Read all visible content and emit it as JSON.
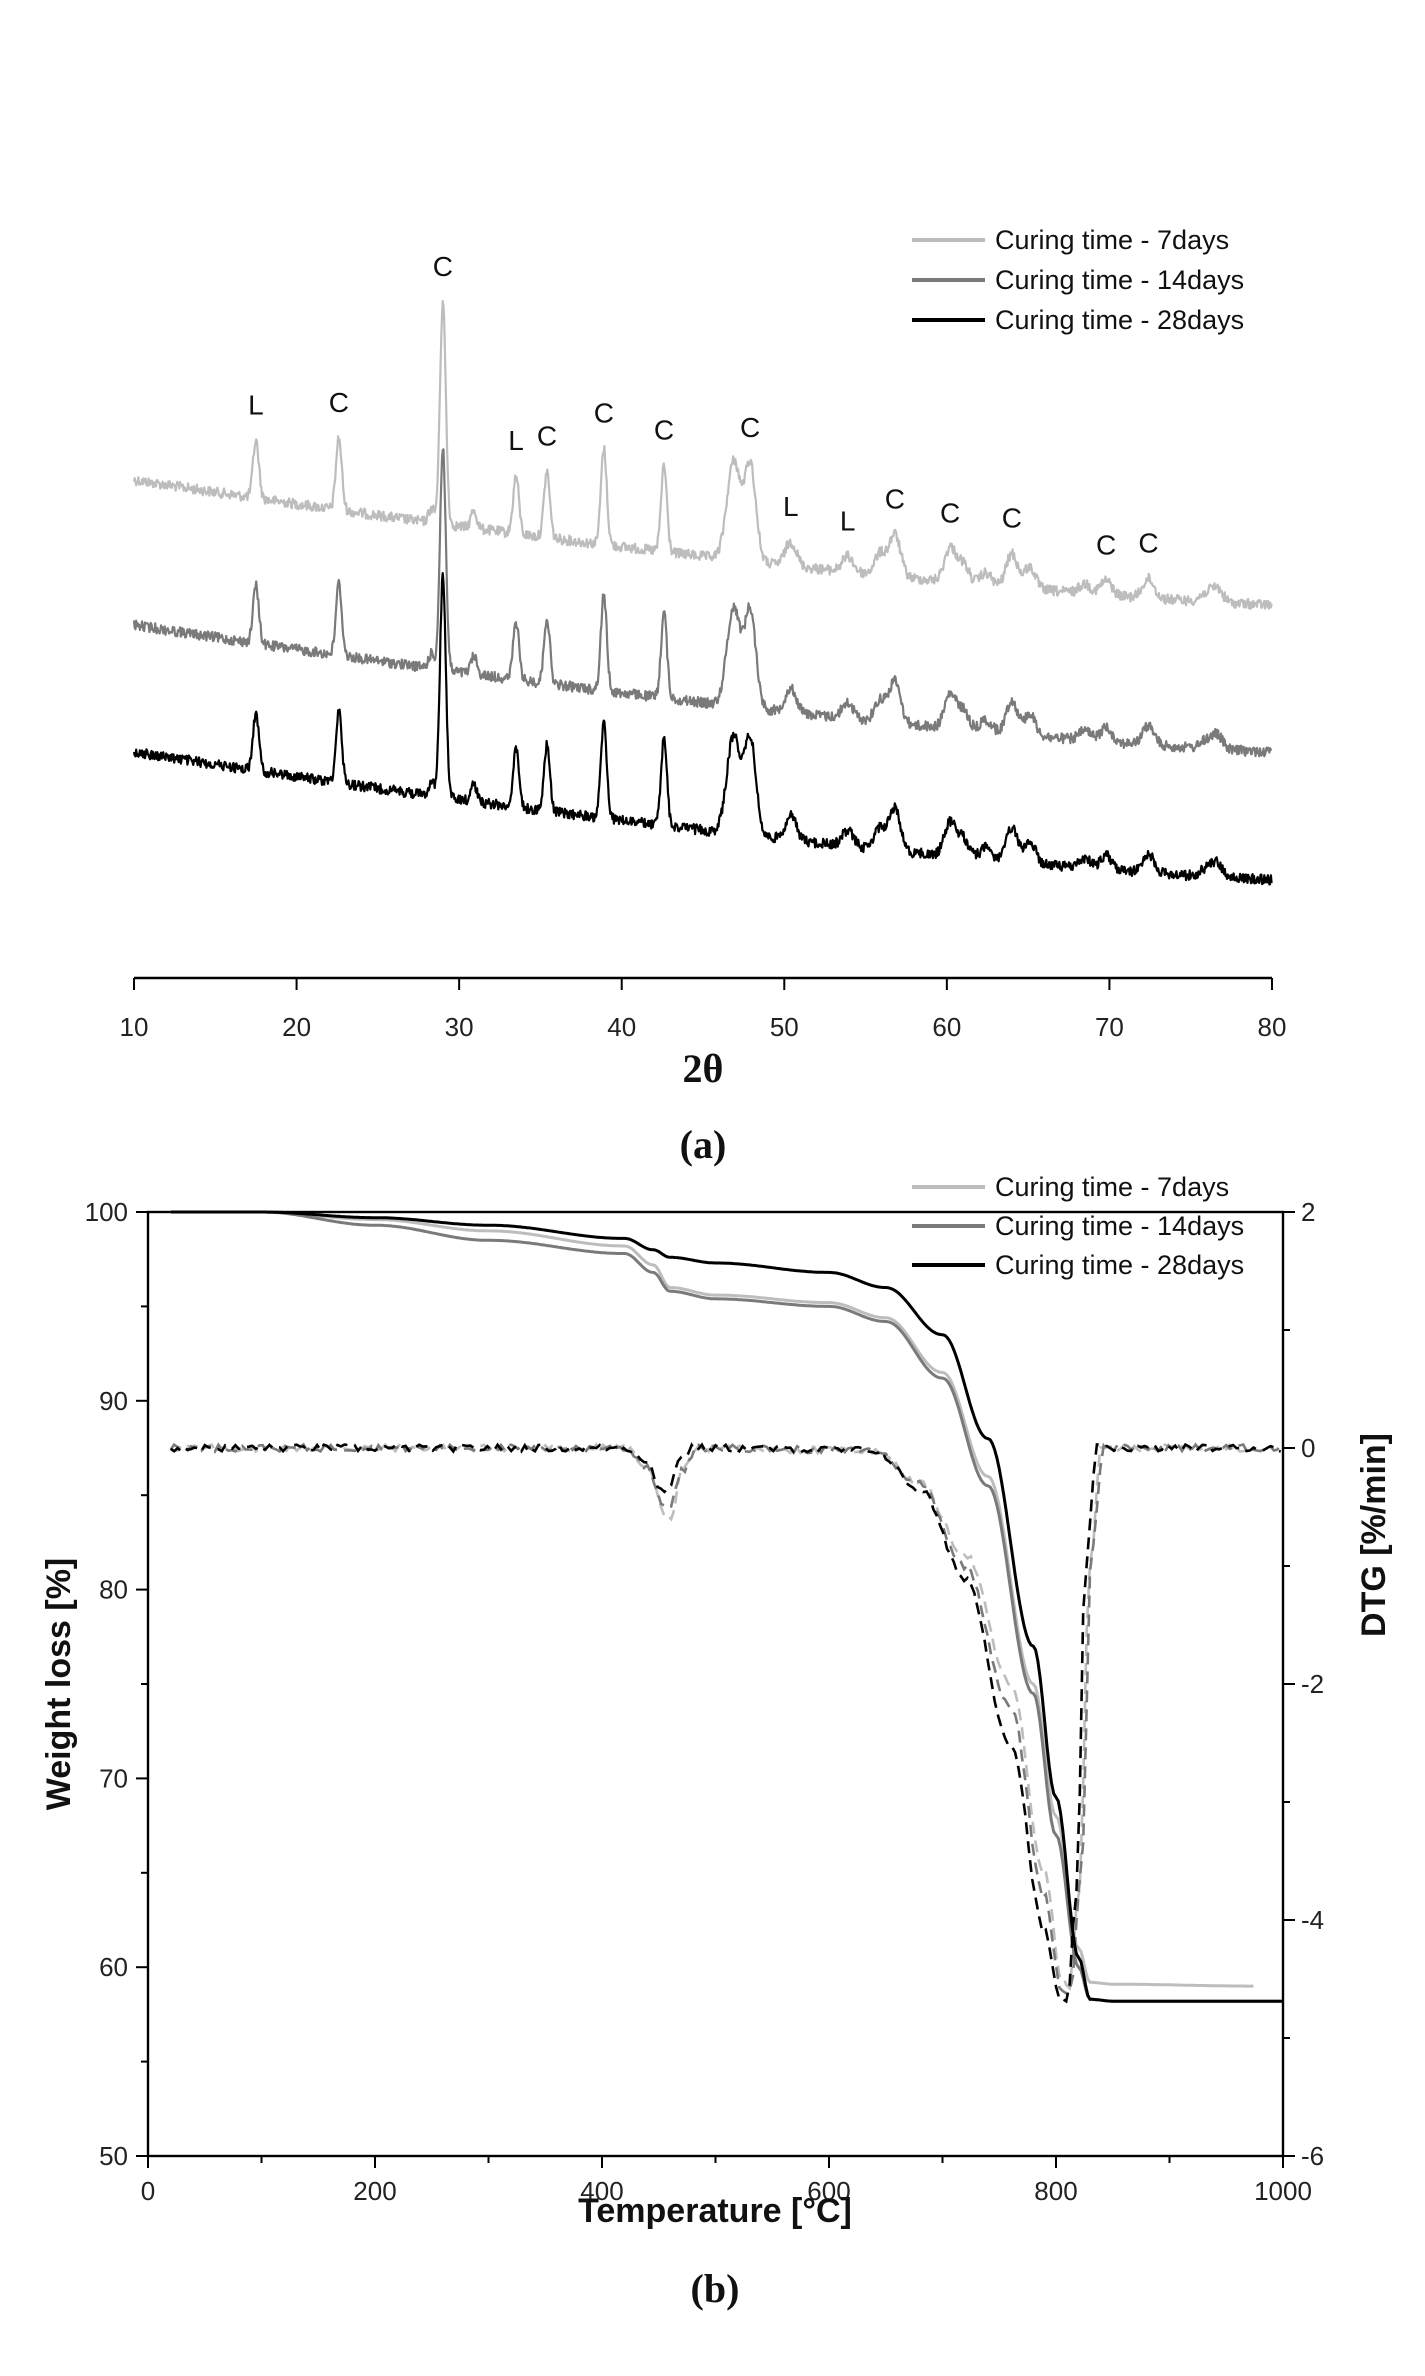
{
  "chart_data": [
    {
      "type": "line",
      "panel_label": "(a)",
      "xlabel": "2θ",
      "ylabel": "",
      "xlim": [
        10,
        80
      ],
      "x_ticks": [
        10,
        20,
        30,
        40,
        50,
        60,
        70,
        80
      ],
      "legend_position": "top-right",
      "series": [
        {
          "name": "Curing time - 7days",
          "color": "#bdbdbd"
        },
        {
          "name": "Curing time - 14days",
          "color": "#7a7a7a"
        },
        {
          "name": "Curing time - 28days",
          "color": "#000000"
        }
      ],
      "peaks": [
        {
          "x": 17.5,
          "height": 0.48,
          "label": "L"
        },
        {
          "x": 22.6,
          "height": 0.6,
          "label": "C"
        },
        {
          "x": 28.3,
          "height": 0.12,
          "label": ""
        },
        {
          "x": 29.0,
          "height": 1.85,
          "label": "C"
        },
        {
          "x": 30.9,
          "height": 0.15,
          "label": ""
        },
        {
          "x": 33.5,
          "height": 0.48,
          "label": "L"
        },
        {
          "x": 35.4,
          "height": 0.55,
          "label": "C"
        },
        {
          "x": 38.9,
          "height": 0.8,
          "label": "C"
        },
        {
          "x": 42.6,
          "height": 0.72,
          "label": "C"
        },
        {
          "x": 46.6,
          "height": 0.32,
          "label": ""
        },
        {
          "x": 47.0,
          "height": 0.62,
          "label": ""
        },
        {
          "x": 47.9,
          "height": 0.82,
          "label": "C"
        },
        {
          "x": 50.4,
          "height": 0.2,
          "label": "L"
        },
        {
          "x": 53.9,
          "height": 0.13,
          "label": "L"
        },
        {
          "x": 55.9,
          "height": 0.18,
          "label": ""
        },
        {
          "x": 56.8,
          "height": 0.35,
          "label": "C"
        },
        {
          "x": 60.2,
          "height": 0.28,
          "label": "C"
        },
        {
          "x": 61.0,
          "height": 0.16,
          "label": ""
        },
        {
          "x": 62.4,
          "height": 0.1,
          "label": ""
        },
        {
          "x": 64.0,
          "height": 0.28,
          "label": "C"
        },
        {
          "x": 65.1,
          "height": 0.18,
          "label": ""
        },
        {
          "x": 68.5,
          "height": 0.08,
          "label": ""
        },
        {
          "x": 69.8,
          "height": 0.12,
          "label": "C"
        },
        {
          "x": 72.4,
          "height": 0.16,
          "label": "C"
        },
        {
          "x": 75.9,
          "height": 0.06,
          "label": ""
        },
        {
          "x": 76.6,
          "height": 0.12,
          "label": ""
        }
      ]
    },
    {
      "type": "line",
      "panel_label": "(b)",
      "xlabel": "Temperature [°C]",
      "ylabel": "Weight loss [%]",
      "y2label": "DTG [%/min]",
      "xlim": [
        0,
        1000
      ],
      "ylim": [
        50,
        100
      ],
      "y2lim": [
        -6,
        2
      ],
      "x_ticks": [
        0,
        200,
        400,
        600,
        800,
        1000
      ],
      "y_ticks": [
        50,
        60,
        70,
        80,
        90,
        100
      ],
      "y2_ticks": [
        -6,
        -4,
        -2,
        0,
        2
      ],
      "legend_position": "top-right",
      "series": [
        {
          "name": "Curing time - 7days",
          "color": "#bdbdbd",
          "tg": [
            [
              20,
              100
            ],
            [
              100,
              100
            ],
            [
              200,
              99.6
            ],
            [
              300,
              99.0
            ],
            [
              420,
              98.2
            ],
            [
              445,
              97.2
            ],
            [
              460,
              96.0
            ],
            [
              500,
              95.6
            ],
            [
              600,
              95.2
            ],
            [
              650,
              94.4
            ],
            [
              700,
              91.5
            ],
            [
              740,
              86.0
            ],
            [
              780,
              75.0
            ],
            [
              800,
              68.0
            ],
            [
              820,
              61.0
            ],
            [
              830,
              59.2
            ],
            [
              850,
              59.1
            ],
            [
              975,
              59.0
            ]
          ],
          "dtg": [
            [
              20,
              0
            ],
            [
              420,
              0
            ],
            [
              440,
              -0.15
            ],
            [
              455,
              -0.55
            ],
            [
              462,
              -0.6
            ],
            [
              470,
              -0.2
            ],
            [
              485,
              0
            ],
            [
              640,
              -0.02
            ],
            [
              680,
              -0.3
            ],
            [
              720,
              -0.9
            ],
            [
              760,
              -2.0
            ],
            [
              790,
              -3.6
            ],
            [
              805,
              -4.5
            ],
            [
              812,
              -4.55
            ],
            [
              820,
              -3.8
            ],
            [
              830,
              -1.0
            ],
            [
              840,
              0
            ],
            [
              975,
              0
            ]
          ]
        },
        {
          "name": "Curing time - 14days",
          "color": "#7a7a7a",
          "tg": [
            [
              20,
              100
            ],
            [
              100,
              100
            ],
            [
              200,
              99.3
            ],
            [
              300,
              98.5
            ],
            [
              420,
              97.8
            ],
            [
              445,
              96.8
            ],
            [
              460,
              95.8
            ],
            [
              500,
              95.4
            ],
            [
              600,
              95.0
            ],
            [
              650,
              94.2
            ],
            [
              700,
              91.2
            ],
            [
              740,
              85.5
            ],
            [
              780,
              74.5
            ],
            [
              800,
              67.0
            ],
            [
              820,
              60.0
            ],
            [
              830,
              58.3
            ],
            [
              850,
              58.2
            ],
            [
              1000,
              58.2
            ]
          ],
          "dtg": [
            [
              20,
              0
            ],
            [
              420,
              0
            ],
            [
              440,
              -0.15
            ],
            [
              452,
              -0.45
            ],
            [
              460,
              -0.5
            ],
            [
              470,
              -0.2
            ],
            [
              485,
              0
            ],
            [
              640,
              -0.02
            ],
            [
              680,
              -0.3
            ],
            [
              720,
              -1.0
            ],
            [
              760,
              -2.2
            ],
            [
              790,
              -3.8
            ],
            [
              805,
              -4.6
            ],
            [
              813,
              -4.6
            ],
            [
              822,
              -3.6
            ],
            [
              832,
              -0.8
            ],
            [
              842,
              0
            ],
            [
              1000,
              0
            ]
          ]
        },
        {
          "name": "Curing time - 28days",
          "color": "#000000",
          "tg": [
            [
              20,
              100
            ],
            [
              100,
              100
            ],
            [
              200,
              99.7
            ],
            [
              300,
              99.3
            ],
            [
              420,
              98.6
            ],
            [
              445,
              98.0
            ],
            [
              460,
              97.6
            ],
            [
              500,
              97.3
            ],
            [
              600,
              96.8
            ],
            [
              650,
              96.0
            ],
            [
              700,
              93.5
            ],
            [
              740,
              88.0
            ],
            [
              780,
              77.0
            ],
            [
              800,
              69.0
            ],
            [
              820,
              60.5
            ],
            [
              830,
              58.3
            ],
            [
              850,
              58.2
            ],
            [
              1000,
              58.2
            ]
          ],
          "dtg": [
            [
              20,
              0
            ],
            [
              420,
              0
            ],
            [
              440,
              -0.1
            ],
            [
              450,
              -0.35
            ],
            [
              458,
              -0.35
            ],
            [
              468,
              -0.1
            ],
            [
              480,
              0
            ],
            [
              640,
              -0.02
            ],
            [
              680,
              -0.35
            ],
            [
              720,
              -1.1
            ],
            [
              760,
              -2.5
            ],
            [
              790,
              -4.1
            ],
            [
              803,
              -4.65
            ],
            [
              810,
              -4.7
            ],
            [
              818,
              -3.8
            ],
            [
              826,
              -1.0
            ],
            [
              836,
              0
            ],
            [
              1000,
              0
            ]
          ]
        }
      ]
    }
  ]
}
